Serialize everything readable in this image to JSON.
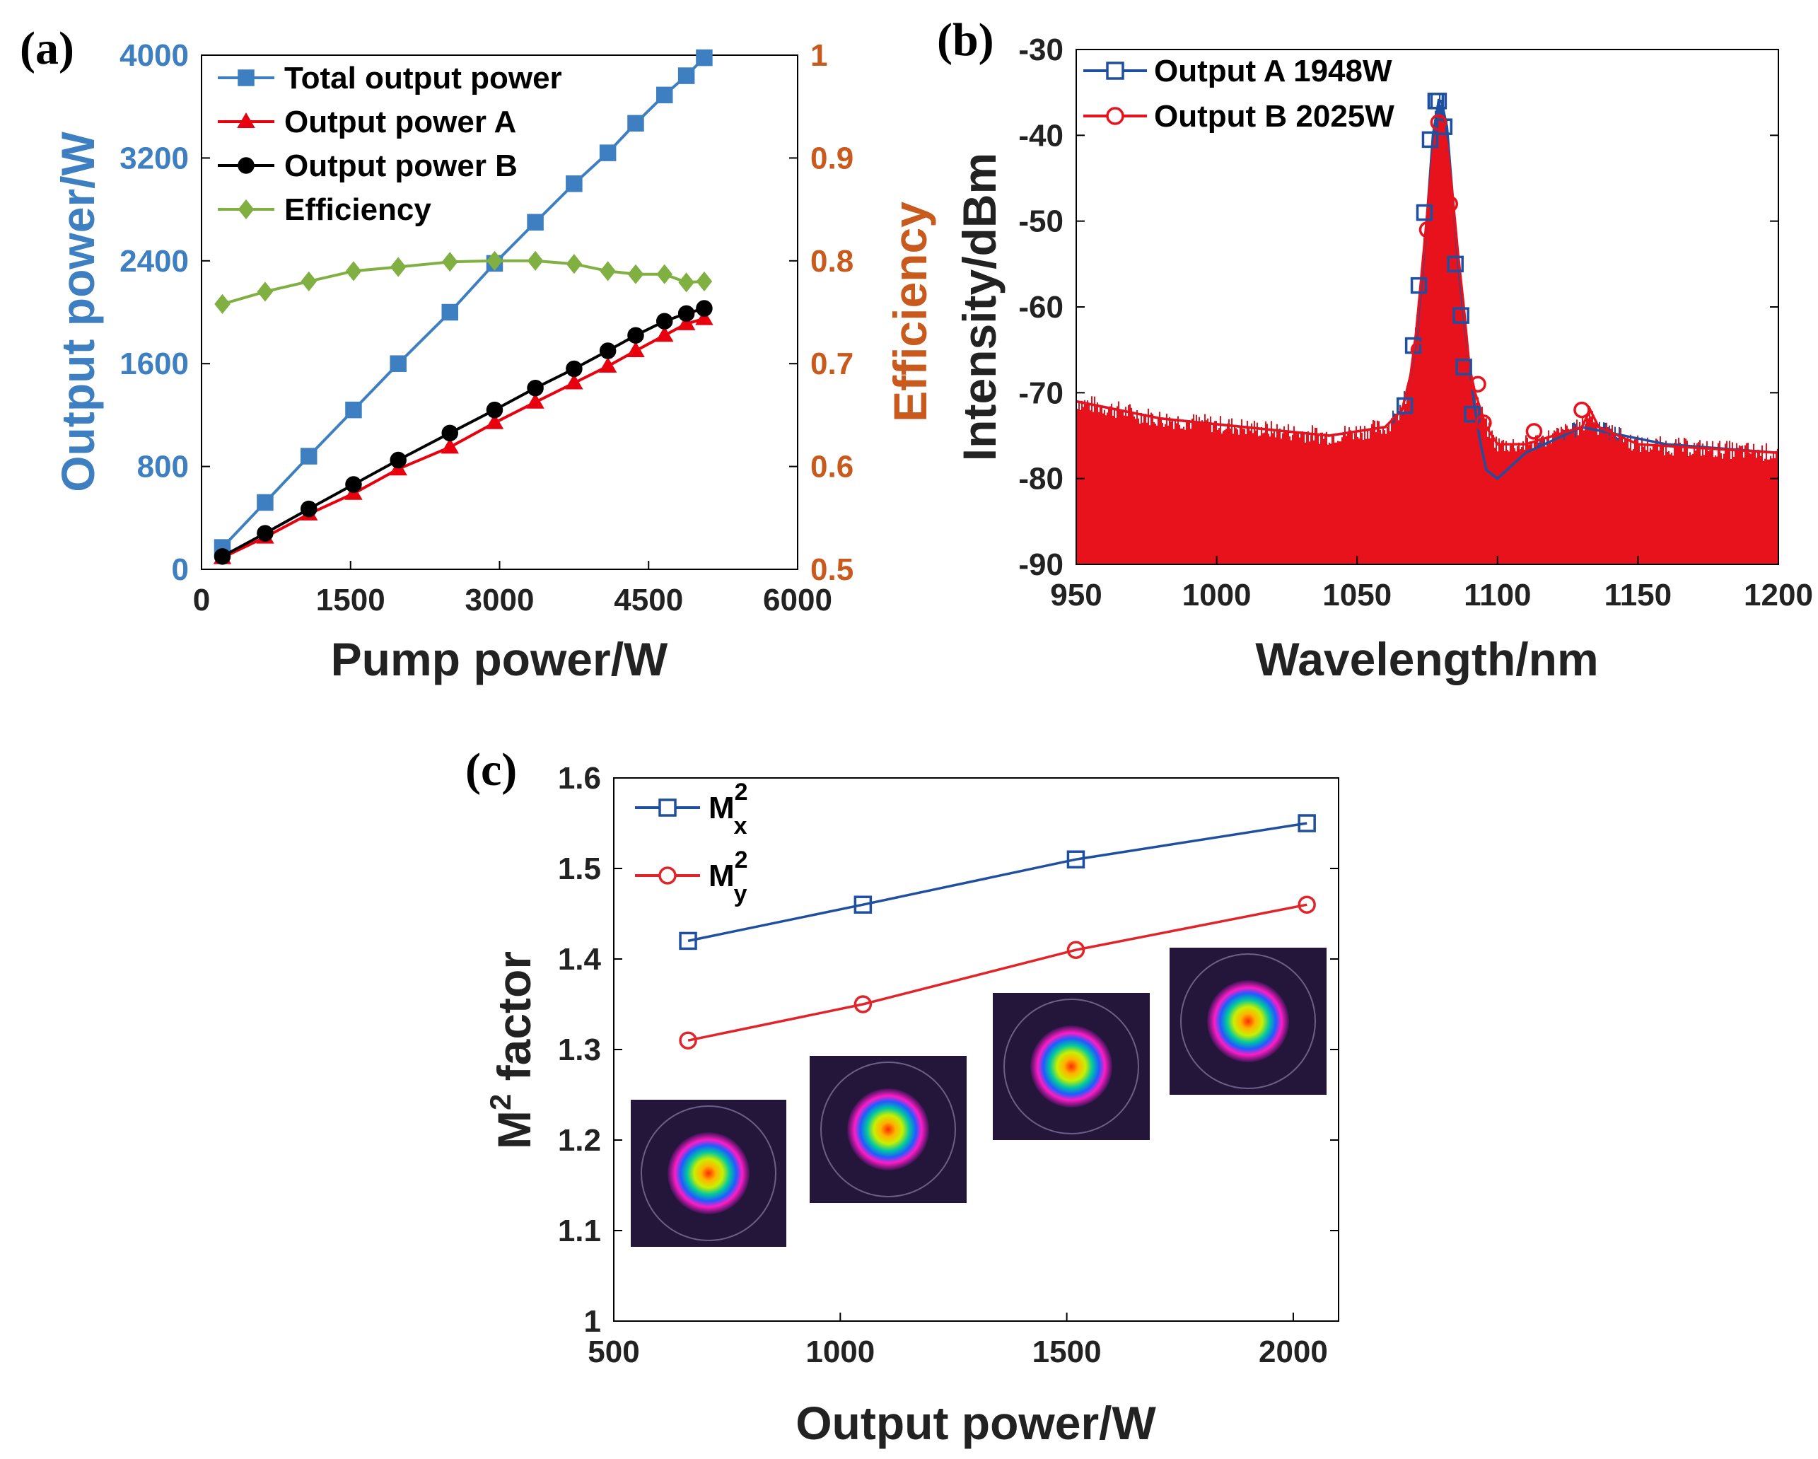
{
  "panels": {
    "a": {
      "label": "(a)"
    },
    "b": {
      "label": "(b)"
    },
    "c": {
      "label": "(c)"
    }
  },
  "colors": {
    "total": "#3d7fc1",
    "outputA": "#e8000e",
    "outputB": "#000000",
    "efficiency": "#7fb041",
    "leftAxis": "#3d7fc1",
    "rightAxis": "#c95a1e",
    "specA": "#1f4fa0",
    "specB": "#e8121c",
    "mx": "#1f4fa0",
    "my": "#e0242a"
  },
  "chart_data": [
    {
      "id": "a",
      "type": "line",
      "xlabel": "Pump power/W",
      "ylabel": "Output power/W",
      "y2label": "Efficiency",
      "xlim": [
        0,
        6000
      ],
      "ylim": [
        0,
        4000
      ],
      "y2lim": [
        0.5,
        1
      ],
      "xticks": [
        0,
        1500,
        3000,
        4500,
        6000
      ],
      "yticks": [
        0,
        800,
        1600,
        2400,
        3200,
        4000
      ],
      "y2ticks": [
        0.5,
        0.6,
        0.7,
        0.8,
        0.9,
        1
      ],
      "y2ticklabels": [
        "0.5",
        "0.6",
        "0.7",
        "0.8",
        "0.9",
        "1"
      ],
      "legend_position": "top-left",
      "series": [
        {
          "name": "Total output power",
          "axis": "left",
          "marker": "square",
          "x": [
            210,
            640,
            1080,
            1530,
            1980,
            2500,
            2950,
            3360,
            3750,
            4090,
            4370,
            4660,
            4880,
            5060
          ],
          "y": [
            170,
            520,
            880,
            1240,
            1600,
            2000,
            2380,
            2700,
            3000,
            3240,
            3470,
            3690,
            3840,
            3980
          ]
        },
        {
          "name": "Output power A",
          "axis": "left",
          "marker": "triangle",
          "x": [
            210,
            640,
            1080,
            1530,
            1980,
            2500,
            2950,
            3360,
            3750,
            4090,
            4370,
            4660,
            4880,
            5060
          ],
          "y": [
            90,
            250,
            430,
            590,
            780,
            950,
            1140,
            1300,
            1450,
            1580,
            1700,
            1820,
            1910,
            1950
          ]
        },
        {
          "name": "Output power B",
          "axis": "left",
          "marker": "circle",
          "x": [
            210,
            640,
            1080,
            1530,
            1980,
            2500,
            2950,
            3360,
            3750,
            4090,
            4370,
            4660,
            4880,
            5060
          ],
          "y": [
            100,
            280,
            470,
            660,
            850,
            1060,
            1240,
            1410,
            1560,
            1700,
            1820,
            1930,
            1990,
            2030
          ]
        },
        {
          "name": "Efficiency",
          "axis": "right",
          "marker": "diamond",
          "x": [
            210,
            640,
            1080,
            1530,
            1980,
            2500,
            2950,
            3360,
            3750,
            4090,
            4370,
            4660,
            4880,
            5060
          ],
          "y": [
            0.758,
            0.77,
            0.78,
            0.79,
            0.794,
            0.799,
            0.8,
            0.8,
            0.797,
            0.79,
            0.787,
            0.787,
            0.779,
            0.78
          ]
        }
      ]
    },
    {
      "id": "b",
      "type": "line",
      "xlabel": "Wavelength/nm",
      "ylabel": "Intensity/dBm",
      "xlim": [
        950,
        1200
      ],
      "ylim": [
        -90,
        -30
      ],
      "xticks": [
        950,
        1000,
        1050,
        1100,
        1150,
        1200
      ],
      "yticks": [
        -90,
        -80,
        -70,
        -60,
        -50,
        -40,
        -30
      ],
      "legend_position": "top-left",
      "series": [
        {
          "name": "Output A 1948W",
          "marker": "square",
          "x": [
            950,
            980,
            1010,
            1040,
            1060,
            1066,
            1069,
            1071,
            1073,
            1075,
            1077,
            1079,
            1080,
            1082,
            1084,
            1086,
            1088,
            1090,
            1092,
            1094,
            1096,
            1100,
            1110,
            1130,
            1160,
            1200
          ],
          "y": [
            -71,
            -73,
            -74,
            -75,
            -74,
            -72,
            -68,
            -64,
            -57,
            -49,
            -40,
            -36,
            -36,
            -39,
            -47,
            -55,
            -61,
            -67,
            -72,
            -76,
            -79,
            -80,
            -77,
            -74,
            -76,
            -77
          ],
          "marker_x": [
            1067,
            1070,
            1072,
            1074,
            1076,
            1078,
            1079,
            1081,
            1085,
            1087,
            1088,
            1091
          ],
          "marker_y": [
            -71.5,
            -64.5,
            -57.5,
            -49,
            -40.5,
            -36,
            -36,
            -39,
            -55,
            -61,
            -67,
            -72.5
          ]
        },
        {
          "name": "Output B 2025W",
          "marker": "circle",
          "x": [
            950,
            980,
            1010,
            1040,
            1060,
            1066,
            1069,
            1071,
            1073,
            1075,
            1077,
            1079,
            1080,
            1082,
            1084,
            1086,
            1088,
            1090,
            1092,
            1094,
            1096,
            1100,
            1110,
            1120,
            1130,
            1133,
            1136,
            1150,
            1200
          ],
          "y": [
            -71,
            -73,
            -74,
            -75,
            -74,
            -72,
            -68,
            -63,
            -56,
            -49,
            -42,
            -38,
            -38,
            -41,
            -47,
            -54,
            -60,
            -67,
            -70,
            -72,
            -74,
            -76,
            -76,
            -75,
            -74,
            -72,
            -74,
            -76,
            -77
          ],
          "marker_x": [
            1072,
            1075,
            1079,
            1083,
            1093,
            1095,
            1113,
            1130,
            1140
          ],
          "marker_y": [
            -65,
            -51,
            -38.5,
            -48,
            -69,
            -73.5,
            -74.5,
            -72,
            -76
          ]
        }
      ]
    },
    {
      "id": "c",
      "type": "line",
      "xlabel": "Output power/W",
      "ylabel": "M2 factor",
      "xlim": [
        500,
        2100
      ],
      "ylim": [
        1,
        1.6
      ],
      "xticks": [
        500,
        1000,
        1500,
        2000
      ],
      "yticks": [
        1,
        1.1,
        1.2,
        1.3,
        1.4,
        1.5,
        1.6
      ],
      "yticklabels": [
        "1",
        "1.1",
        "1.2",
        "1.3",
        "1.4",
        "1.5",
        "1.6"
      ],
      "legend_position": "top-left",
      "series": [
        {
          "name": "Mx2",
          "marker": "square",
          "x": [
            664,
            1050,
            1520,
            2030
          ],
          "y": [
            1.42,
            1.46,
            1.51,
            1.55
          ]
        },
        {
          "name": "My2",
          "marker": "circle",
          "x": [
            664,
            1050,
            1520,
            2030
          ],
          "y": [
            1.31,
            1.35,
            1.41,
            1.46
          ]
        }
      ]
    }
  ]
}
